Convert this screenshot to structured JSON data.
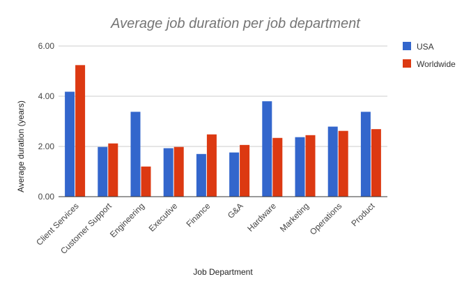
{
  "chart_data": {
    "type": "bar",
    "title": "Average job duration per job department",
    "xlabel": "Job Department",
    "ylabel": "Average duration (years)",
    "ylim": [
      0,
      6
    ],
    "yticks": [
      "0.00",
      "2.00",
      "4.00",
      "6.00"
    ],
    "ytick_values": [
      0,
      2,
      4,
      6
    ],
    "categories": [
      "Client Services",
      "Customer Support",
      "Engineering",
      "Executive",
      "Finance",
      "G&A",
      "Hardware",
      "Marketing",
      "Operations",
      "Product"
    ],
    "series": [
      {
        "name": "USA",
        "color": "#3366cc",
        "values": [
          4.18,
          1.98,
          3.38,
          1.93,
          1.7,
          1.76,
          3.8,
          2.37,
          2.79,
          3.38
        ]
      },
      {
        "name": "Worldwide",
        "color": "#dc3912",
        "values": [
          5.24,
          2.12,
          1.2,
          1.98,
          2.48,
          2.06,
          2.34,
          2.45,
          2.62,
          2.69
        ]
      }
    ],
    "grid": true,
    "legend": "right"
  }
}
